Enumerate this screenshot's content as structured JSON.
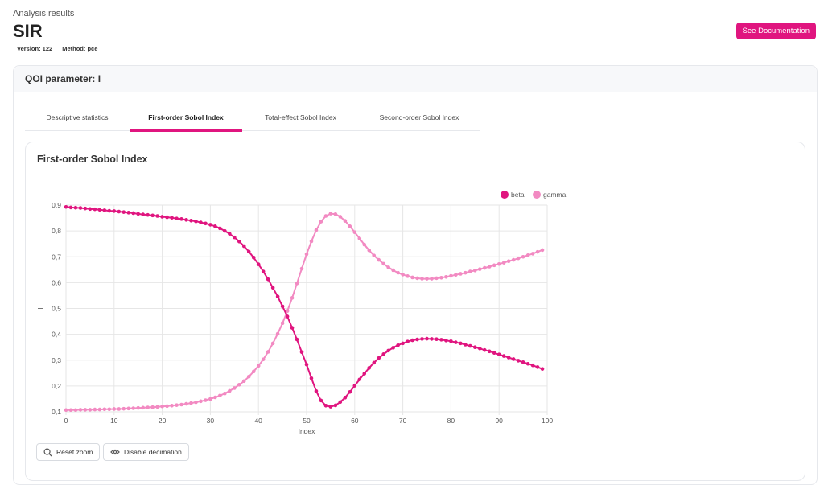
{
  "header": {
    "section_label": "Analysis results",
    "title": "SIR",
    "version": "Version: 122",
    "method": "Method: pce",
    "doc_button": "See Documentation"
  },
  "qoi": {
    "label": "QOI parameter: I"
  },
  "tabs": [
    {
      "label": "Descriptive statistics",
      "active": false
    },
    {
      "label": "First-order Sobol Index",
      "active": true
    },
    {
      "label": "Total-effect Sobol Index",
      "active": false
    },
    {
      "label": "Second-order Sobol Index",
      "active": false
    }
  ],
  "chart_card": {
    "title": "First-order Sobol Index",
    "reset_zoom": "Reset zoom",
    "disable_decimation": "Disable decimation"
  },
  "colors": {
    "accent": "#e0157f",
    "beta": "#e0157f",
    "gamma": "#f28ac2",
    "grid": "#e6e6e6"
  },
  "chart_data": {
    "type": "line",
    "xlabel": "Index",
    "ylabel": "I",
    "xlim": [
      0,
      100
    ],
    "ylim": [
      0.1,
      0.9
    ],
    "xticks": [
      0,
      10,
      20,
      30,
      40,
      50,
      60,
      70,
      80,
      90,
      100
    ],
    "yticks": [
      "0,1",
      "0,2",
      "0,3",
      "0,4",
      "0,5",
      "0,6",
      "0,7",
      "0,8",
      "0,9"
    ],
    "ytick_values": [
      0.1,
      0.2,
      0.3,
      0.4,
      0.5,
      0.6,
      0.7,
      0.8,
      0.9
    ],
    "xtick_labels": [
      "0",
      "10",
      "20",
      "30",
      "40",
      "50",
      "60",
      "70",
      "80",
      "90",
      "100"
    ],
    "legend_position": "top-right",
    "series": [
      {
        "name": "beta",
        "x": [
          0,
          1,
          2,
          3,
          4,
          5,
          6,
          7,
          8,
          9,
          10,
          11,
          12,
          13,
          14,
          15,
          16,
          17,
          18,
          19,
          20,
          21,
          22,
          23,
          24,
          25,
          26,
          27,
          28,
          29,
          30,
          31,
          32,
          33,
          34,
          35,
          36,
          37,
          38,
          39,
          40,
          41,
          42,
          43,
          44,
          45,
          46,
          47,
          48,
          49,
          50,
          51,
          52,
          53,
          54,
          55,
          56,
          57,
          58,
          59,
          60,
          61,
          62,
          63,
          64,
          65,
          66,
          67,
          68,
          69,
          70,
          71,
          72,
          73,
          74,
          75,
          76,
          77,
          78,
          79,
          80,
          81,
          82,
          83,
          84,
          85,
          86,
          87,
          88,
          89,
          90,
          91,
          92,
          93,
          94,
          95,
          96,
          97,
          98,
          99
        ],
        "values": [
          0.893,
          0.891,
          0.89,
          0.889,
          0.887,
          0.885,
          0.884,
          0.882,
          0.88,
          0.878,
          0.877,
          0.875,
          0.873,
          0.871,
          0.869,
          0.866,
          0.864,
          0.862,
          0.86,
          0.858,
          0.855,
          0.853,
          0.851,
          0.848,
          0.846,
          0.843,
          0.84,
          0.837,
          0.833,
          0.829,
          0.824,
          0.818,
          0.81,
          0.8,
          0.789,
          0.775,
          0.759,
          0.741,
          0.72,
          0.697,
          0.671,
          0.643,
          0.613,
          0.58,
          0.546,
          0.508,
          0.469,
          0.425,
          0.38,
          0.331,
          0.283,
          0.23,
          0.18,
          0.144,
          0.124,
          0.12,
          0.125,
          0.138,
          0.155,
          0.177,
          0.201,
          0.225,
          0.248,
          0.27,
          0.29,
          0.308,
          0.323,
          0.337,
          0.348,
          0.358,
          0.365,
          0.372,
          0.377,
          0.38,
          0.382,
          0.383,
          0.382,
          0.381,
          0.379,
          0.376,
          0.373,
          0.369,
          0.365,
          0.36,
          0.355,
          0.35,
          0.345,
          0.339,
          0.334,
          0.328,
          0.322,
          0.316,
          0.31,
          0.304,
          0.298,
          0.292,
          0.286,
          0.28,
          0.273,
          0.266
        ]
      },
      {
        "name": "gamma",
        "x": [
          0,
          1,
          2,
          3,
          4,
          5,
          6,
          7,
          8,
          9,
          10,
          11,
          12,
          13,
          14,
          15,
          16,
          17,
          18,
          19,
          20,
          21,
          22,
          23,
          24,
          25,
          26,
          27,
          28,
          29,
          30,
          31,
          32,
          33,
          34,
          35,
          36,
          37,
          38,
          39,
          40,
          41,
          42,
          43,
          44,
          45,
          46,
          47,
          48,
          49,
          50,
          51,
          52,
          53,
          54,
          55,
          56,
          57,
          58,
          59,
          60,
          61,
          62,
          63,
          64,
          65,
          66,
          67,
          68,
          69,
          70,
          71,
          72,
          73,
          74,
          75,
          76,
          77,
          78,
          79,
          80,
          81,
          82,
          83,
          84,
          85,
          86,
          87,
          88,
          89,
          90,
          91,
          92,
          93,
          94,
          95,
          96,
          97,
          98,
          99
        ],
        "values": [
          0.107,
          0.107,
          0.107,
          0.108,
          0.108,
          0.108,
          0.109,
          0.109,
          0.11,
          0.11,
          0.111,
          0.111,
          0.112,
          0.113,
          0.114,
          0.115,
          0.116,
          0.117,
          0.118,
          0.119,
          0.121,
          0.122,
          0.124,
          0.126,
          0.128,
          0.131,
          0.134,
          0.137,
          0.141,
          0.145,
          0.15,
          0.156,
          0.163,
          0.171,
          0.181,
          0.192,
          0.205,
          0.219,
          0.236,
          0.256,
          0.278,
          0.303,
          0.332,
          0.365,
          0.402,
          0.443,
          0.49,
          0.541,
          0.597,
          0.654,
          0.71,
          0.76,
          0.803,
          0.836,
          0.858,
          0.867,
          0.865,
          0.855,
          0.839,
          0.818,
          0.795,
          0.771,
          0.747,
          0.725,
          0.705,
          0.688,
          0.673,
          0.659,
          0.648,
          0.638,
          0.631,
          0.625,
          0.62,
          0.617,
          0.615,
          0.615,
          0.615,
          0.617,
          0.619,
          0.622,
          0.626,
          0.63,
          0.634,
          0.638,
          0.643,
          0.647,
          0.652,
          0.657,
          0.662,
          0.667,
          0.672,
          0.677,
          0.683,
          0.688,
          0.694,
          0.7,
          0.706,
          0.712,
          0.719,
          0.726
        ]
      }
    ]
  }
}
